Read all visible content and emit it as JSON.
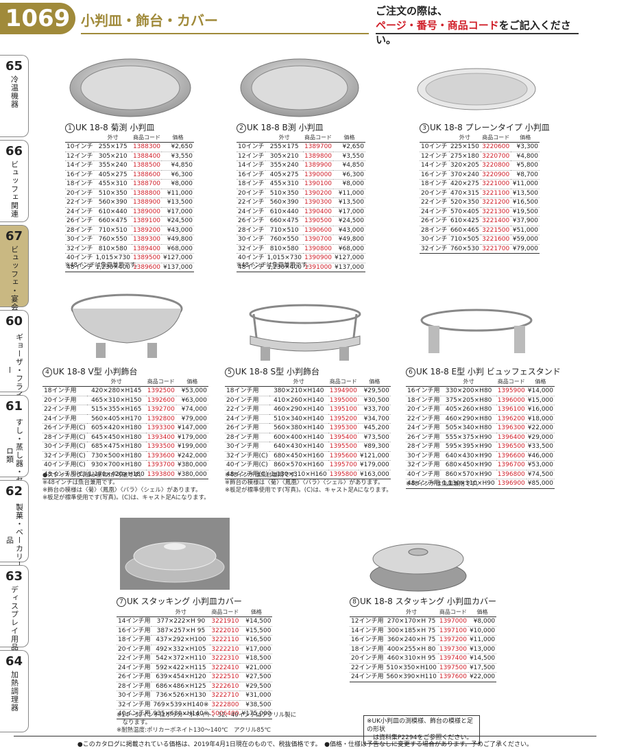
{
  "header": {
    "page_number": "1069",
    "title": "小判皿・飾台・カバー",
    "note_line1": "ご注文の際は、",
    "note_red": "ページ・番号・商品コード",
    "note_tail": "をご記入ください。"
  },
  "sidebar": [
    {
      "num": "65",
      "label": "冷温機器"
    },
    {
      "num": "66",
      "label": "ビュッフェ関連"
    },
    {
      "num": "67",
      "label": "ビュッフェ・宴会"
    },
    {
      "num": "60",
      "label": "ギョーザ・フライヤー"
    },
    {
      "num": "61",
      "label": "すし・蒸し器・セイロ類"
    },
    {
      "num": "62",
      "label": "製菓・ベーカリー用品"
    },
    {
      "num": "63",
      "label": "ディスプレイ用品"
    },
    {
      "num": "64",
      "label": "加熱調理器"
    }
  ],
  "columns": {
    "size": "外寸",
    "code": "商品コード",
    "price": "価格"
  },
  "products": [
    {
      "circle": "1",
      "title": "UK 18-8 菊渕 小判皿",
      "rows": [
        [
          "10インチ",
          "255×175",
          "1388300",
          "¥2,650"
        ],
        [
          "12インチ",
          "305×210",
          "1388400",
          "¥3,550"
        ],
        [
          "14インチ",
          "355×240",
          "1388500",
          "¥4,850"
        ],
        [
          "16インチ",
          "405×275",
          "1388600",
          "¥6,300"
        ],
        [
          "18インチ",
          "455×310",
          "1388700",
          "¥8,000"
        ],
        [
          "20インチ",
          "510×350",
          "1388800",
          "¥11,000"
        ],
        [
          "22インチ",
          "560×390",
          "1388900",
          "¥13,500"
        ],
        [
          "24インチ",
          "610×440",
          "1389000",
          "¥17,000"
        ],
        [
          "26インチ",
          "660×475",
          "1389100",
          "¥24,500"
        ],
        [
          "28インチ",
          "710×510",
          "1389200",
          "¥43,000"
        ],
        [
          "30インチ",
          "760×550",
          "1389300",
          "¥49,800"
        ],
        [
          "32インチ",
          "810×580",
          "1389400",
          "¥68,000"
        ],
        [
          "40インチ",
          "1,015×730",
          "1389500",
          "¥127,000"
        ],
        [
          "48インチ",
          "1,230×400",
          "1389600",
          "¥137,000"
        ]
      ],
      "notes": [
        "※48インチは魚皿兼用です。"
      ]
    },
    {
      "circle": "2",
      "title": "UK 18-8 B渕 小判皿",
      "rows": [
        [
          "10インチ",
          "255×175",
          "1389700",
          "¥2,650"
        ],
        [
          "12インチ",
          "305×210",
          "1389800",
          "¥3,550"
        ],
        [
          "14インチ",
          "355×240",
          "1389900",
          "¥4,850"
        ],
        [
          "16インチ",
          "405×275",
          "1390000",
          "¥6,300"
        ],
        [
          "18インチ",
          "455×310",
          "1390100",
          "¥8,000"
        ],
        [
          "20インチ",
          "510×350",
          "1390200",
          "¥11,000"
        ],
        [
          "22インチ",
          "560×390",
          "1390300",
          "¥13,500"
        ],
        [
          "24インチ",
          "610×440",
          "1390400",
          "¥17,000"
        ],
        [
          "26インチ",
          "660×475",
          "1390500",
          "¥24,500"
        ],
        [
          "28インチ",
          "710×510",
          "1390600",
          "¥43,000"
        ],
        [
          "30インチ",
          "760×550",
          "1390700",
          "¥49,800"
        ],
        [
          "32インチ",
          "810×580",
          "1390800",
          "¥68,000"
        ],
        [
          "40インチ",
          "1,015×730",
          "1390900",
          "¥127,000"
        ],
        [
          "48インチ",
          "1,230×400",
          "1391000",
          "¥137,000"
        ]
      ],
      "notes": [
        "※48インチは魚皿兼用です。"
      ]
    },
    {
      "circle": "3",
      "title": "UK 18-8 プレーンタイプ 小判皿",
      "rows": [
        [
          "10インチ",
          "225×150",
          "3220600",
          "¥3,300"
        ],
        [
          "12インチ",
          "275×180",
          "3220700",
          "¥4,800"
        ],
        [
          "14インチ",
          "320×205",
          "3220800",
          "¥5,800"
        ],
        [
          "16インチ",
          "370×240",
          "3220900",
          "¥8,700"
        ],
        [
          "18インチ",
          "420×275",
          "3221000",
          "¥11,000"
        ],
        [
          "20インチ",
          "470×315",
          "3221100",
          "¥13,500"
        ],
        [
          "22インチ",
          "520×350",
          "3221200",
          "¥16,500"
        ],
        [
          "24インチ",
          "570×405",
          "3221300",
          "¥19,500"
        ],
        [
          "26インチ",
          "610×425",
          "3221400",
          "¥37,900"
        ],
        [
          "28インチ",
          "660×465",
          "3221500",
          "¥51,000"
        ],
        [
          "30インチ",
          "710×505",
          "3221600",
          "¥59,000"
        ],
        [
          "32インチ",
          "760×530",
          "3221700",
          "¥79,000"
        ]
      ],
      "notes": []
    },
    {
      "circle": "4",
      "title": "UK 18-8 V型 小判飾台",
      "rows": [
        [
          "18インチ用",
          "420×280×H145",
          "1392500",
          "¥53,000"
        ],
        [
          "20インチ用",
          "465×310×H150",
          "1392600",
          "¥63,000"
        ],
        [
          "22インチ用",
          "515×355×H165",
          "1392700",
          "¥74,000"
        ],
        [
          "24インチ用",
          "560×405×H170",
          "1392800",
          "¥79,000"
        ],
        [
          "26インチ用(C)",
          "605×420×H180",
          "1393300",
          "¥147,000"
        ],
        [
          "28インチ用(C)",
          "645×450×H180",
          "1393400",
          "¥179,000"
        ],
        [
          "30インチ用(C)",
          "685×475×H180",
          "1393500",
          "¥199,000"
        ],
        [
          "32インチ用(C)",
          "730×500×H180",
          "1393600",
          "¥242,000"
        ],
        [
          "40インチ用(C)",
          "930×700×H180",
          "1393700",
          "¥380,000"
        ],
        [
          "48インチ用(C)",
          "1,170×420×H180",
          "1393800",
          "¥380,000"
        ]
      ],
      "notes": [
        "●スタッキング(積み重ね)が可能です。",
        "※48インチは魚台兼用です。",
        "※飾台の模様は〈菊〉〈鳳凰〉〈バラ〉〈シェル〉があります。",
        "※板足が標準使用です(写真)。(C)は、キャスト足Aになります。"
      ]
    },
    {
      "circle": "5",
      "title": "UK 18-8 S型 小判飾台",
      "rows": [
        [
          "18インチ用",
          "380×210×H140",
          "1394900",
          "¥29,500"
        ],
        [
          "20インチ用",
          "410×260×H140",
          "1395000",
          "¥30,500"
        ],
        [
          "22インチ用",
          "460×290×H140",
          "1395100",
          "¥33,700"
        ],
        [
          "24インチ用",
          "510×340×H140",
          "1395200",
          "¥34,700"
        ],
        [
          "26インチ用",
          "560×380×H140",
          "1395300",
          "¥45,200"
        ],
        [
          "28インチ用",
          "600×400×H140",
          "1395400",
          "¥73,500"
        ],
        [
          "30インチ用",
          "640×430×H140",
          "1395500",
          "¥89,300"
        ],
        [
          "32インチ用(C)",
          "680×450×H160",
          "1395600",
          "¥121,000"
        ],
        [
          "40インチ用(C)",
          "860×570×H160",
          "1395700",
          "¥179,000"
        ],
        [
          "48インチ用(C)",
          "1,130×310×H160",
          "1395800",
          "¥163,000"
        ]
      ],
      "notes": [
        "※48インチは魚台兼用です。",
        "※飾台の模様は〈菊〉〈鳳凰〉〈バラ〉〈シェル〉があります。",
        "※板足が標準使用です(写真)。(C)は、キャスト足Aになります。"
      ]
    },
    {
      "circle": "6",
      "title": "UK 18-8 E型 小判 ビュッフェスタンド",
      "rows": [
        [
          "16インチ用",
          "330×200×H80",
          "1395900",
          "¥14,000"
        ],
        [
          "18インチ用",
          "375×205×H80",
          "1396000",
          "¥15,000"
        ],
        [
          "20インチ用",
          "405×260×H80",
          "1396100",
          "¥16,000"
        ],
        [
          "22インチ用",
          "460×290×H80",
          "1396200",
          "¥18,000"
        ],
        [
          "24インチ用",
          "505×340×H80",
          "1396300",
          "¥22,000"
        ],
        [
          "26インチ用",
          "555×375×H90",
          "1396400",
          "¥29,000"
        ],
        [
          "28インチ用",
          "595×395×H90",
          "1396500",
          "¥33,500"
        ],
        [
          "30インチ用",
          "640×430×H90",
          "1396600",
          "¥46,000"
        ],
        [
          "32インチ用",
          "680×450×H90",
          "1396700",
          "¥53,000"
        ],
        [
          "40インチ用",
          "860×570×H90",
          "1396800",
          "¥74,500"
        ],
        [
          "48インチ用",
          "1,130×310×H90",
          "1396900",
          "¥85,000"
        ]
      ],
      "notes": [
        "※48インチは魚皿兼用です。"
      ]
    },
    {
      "circle": "7",
      "title": "UK スタッキング 小判皿カバー",
      "rows": [
        [
          "14インチ用",
          "377×222×H 90",
          "3221910",
          "¥14,500"
        ],
        [
          "16インチ用",
          "387×257×H 95",
          "3222010",
          "¥15,500"
        ],
        [
          "18インチ用",
          "437×292×H100",
          "3222110",
          "¥16,500"
        ],
        [
          "20インチ用",
          "492×332×H105",
          "3222210",
          "¥17,000"
        ],
        [
          "22インチ用",
          "542×372×H110",
          "3222310",
          "¥18,500"
        ],
        [
          "24インチ用",
          "592×422×H115",
          "3222410",
          "¥21,000"
        ],
        [
          "26インチ用",
          "639×454×H120",
          "3222510",
          "¥27,500"
        ],
        [
          "28インチ用",
          "686×486×H125",
          "3222610",
          "¥29,500"
        ],
        [
          "30インチ用",
          "736×526×H130",
          "3222710",
          "¥31,000"
        ],
        [
          "32インチ用",
          "769×539×H140※",
          "3222800",
          "¥38,500"
        ],
        [
          "40インチ用",
          "935×680×H140※",
          "5006400",
          "¥175,000"
        ]
      ],
      "notes": [
        "※14〜30インチはポリカーボネイト、32、40インチはアクリル製に",
        "　なります。",
        "※耐熱温度:ポリカーボネイト130〜140℃　アクリル85℃"
      ]
    },
    {
      "circle": "8",
      "title": "UK 18-8 スタッキング 小判皿カバー",
      "rows": [
        [
          "12インチ用",
          "270×170×H 75",
          "1397000",
          "¥8,000"
        ],
        [
          "14インチ用",
          "300×185×H 75",
          "1397100",
          "¥10,000"
        ],
        [
          "16インチ用",
          "360×240×H 75",
          "1397200",
          "¥11,000"
        ],
        [
          "18インチ用",
          "400×255×H 80",
          "1397300",
          "¥13,000"
        ],
        [
          "20インチ用",
          "460×310×H 95",
          "1397400",
          "¥14,500"
        ],
        [
          "22インチ用",
          "510×350×H100",
          "1397500",
          "¥17,500"
        ],
        [
          "24インチ用",
          "560×390×H110",
          "1397600",
          "¥22,000"
        ]
      ],
      "notes": []
    }
  ],
  "ref_note": {
    "line1": "※UK小判皿の渕模様、飾台の模様と足の形状",
    "line2": "　は資料集P2294をご参照ください。"
  },
  "footer": "●このカタログに掲載されている価格は、2019年4月1日現在のもので、税抜価格です。　●価格・仕様は予告なしに変更する場合があります。予めご了承ください。"
}
